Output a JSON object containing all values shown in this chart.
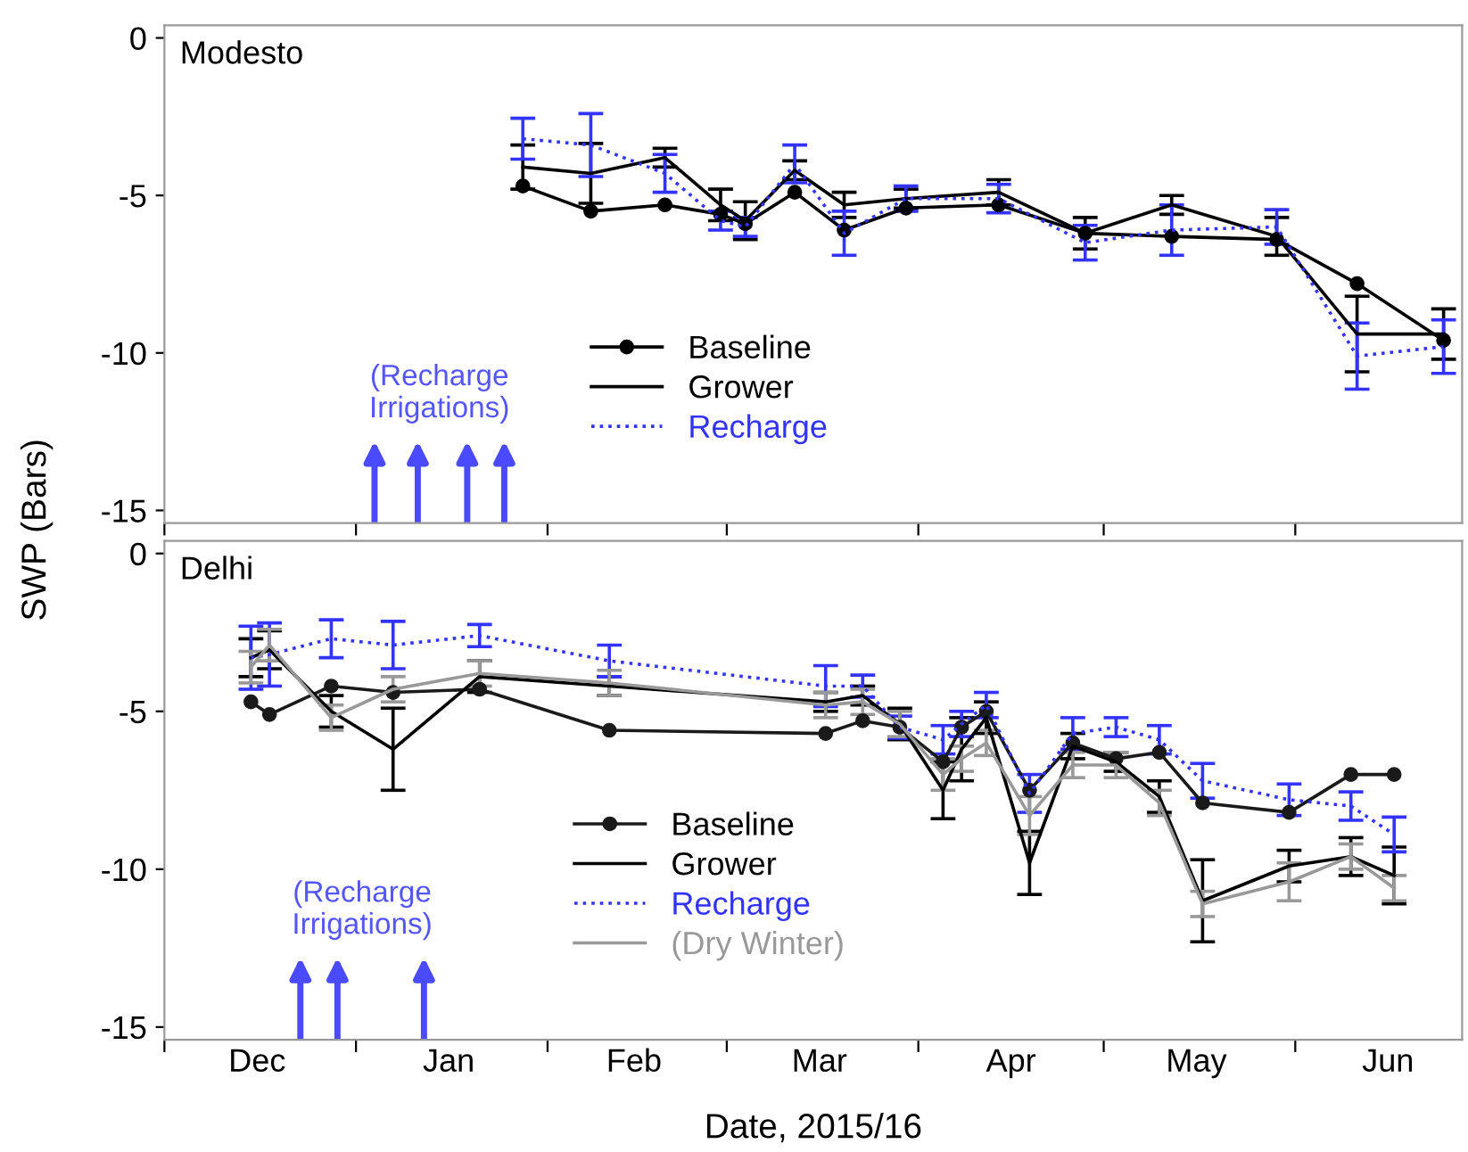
{
  "chart_data": [
    {
      "type": "line",
      "title": "Modesto",
      "ylabel": "SWP (Bars)",
      "tick_labels": "y",
      "legend": "bottom",
      "grid": false,
      "x": [
        "2016-01-28",
        "2016-02-08",
        "2016-02-20",
        "2016-02-29",
        "2016-03-04",
        "2016-03-12",
        "2016-03-20",
        "2016-03-30",
        "2016-04-14",
        "2016-04-28",
        "2016-05-12",
        "2016-05-29",
        "2016-06-11",
        "2016-06-25"
      ],
      "xlim": [
        "2015-12-01",
        "2016-06-28"
      ],
      "xticks": [
        {
          "value": "2015-12-01",
          "label": null
        },
        {
          "value": "2016-01-01",
          "label": null
        },
        {
          "value": "2016-02-01",
          "label": null
        },
        {
          "value": "2016-03-01",
          "label": null
        },
        {
          "value": "2016-04-01",
          "label": null
        },
        {
          "value": "2016-05-01",
          "label": null
        },
        {
          "value": "2016-06-01",
          "label": null
        }
      ],
      "ylim": [
        -15.4,
        0.4
      ],
      "yticks": [
        -15,
        -10,
        -5,
        0
      ],
      "series": [
        {
          "name": "Baseline",
          "color": "#000000",
          "marker": "circle",
          "line_style": "solid",
          "values": [
            -4.7,
            -5.5,
            -5.3,
            -5.6,
            -5.9,
            -4.9,
            -6.1,
            -5.4,
            -5.3,
            -6.2,
            -6.3,
            -6.4,
            -7.8,
            -9.6
          ]
        },
        {
          "name": "Grower",
          "color": "#000000",
          "marker": "none",
          "line_style": "solid",
          "values": [
            -4.1,
            -4.3,
            -3.8,
            -5.3,
            -5.8,
            -4.2,
            -5.3,
            -5.1,
            -4.9,
            -6.2,
            -5.3,
            -6.3,
            -9.4,
            -9.4
          ],
          "errors": [
            0.7,
            0.95,
            0.3,
            0.5,
            0.6,
            0.3,
            0.4,
            0.3,
            0.4,
            0.5,
            0.3,
            0.6,
            1.2,
            0.8
          ]
        },
        {
          "name": "Recharge",
          "color": "#3333ff",
          "marker": "none",
          "line_style": "dotted",
          "values": [
            -3.2,
            -3.4,
            -4.3,
            -5.8,
            -6.0,
            -4.0,
            -6.2,
            -5.1,
            -5.1,
            -6.5,
            -6.1,
            -6.0,
            -10.1,
            -9.8
          ],
          "errors": [
            0.65,
            1.0,
            0.6,
            0.3,
            0.3,
            0.6,
            0.7,
            0.4,
            0.45,
            0.55,
            0.8,
            0.55,
            1.05,
            0.85
          ]
        }
      ],
      "ref_lines": [
        {
          "axis": "x",
          "value": "2016-01-04",
          "color": "#4a4aff"
        },
        {
          "axis": "x",
          "value": "2016-01-11",
          "color": "#4a4aff"
        },
        {
          "axis": "x",
          "value": "2016-01-19",
          "color": "#4a4aff"
        },
        {
          "axis": "x",
          "value": "2016-01-25",
          "color": "#4a4aff"
        }
      ],
      "annotations": [
        "(Recharge\nIrrigations)"
      ]
    },
    {
      "type": "line",
      "title": "Delhi",
      "xlabel": "Date, 2015/16",
      "legend": "bottom",
      "grid": false,
      "x": [
        "2015-12-15",
        "2015-12-18",
        "2015-12-28",
        "2016-01-07",
        "2016-01-21",
        "2016-02-11",
        "2016-03-17",
        "2016-03-23",
        "2016-03-29",
        "2016-04-05",
        "2016-04-08",
        "2016-04-12",
        "2016-04-19",
        "2016-04-26",
        "2016-05-03",
        "2016-05-10",
        "2016-05-17",
        "2016-05-31",
        "2016-06-10",
        "2016-06-17"
      ],
      "xlim": [
        "2015-12-01",
        "2016-06-28"
      ],
      "xticks": [
        {
          "value": "2015-12-01",
          "label": null
        },
        {
          "value": "2015-12-16",
          "label": "Dec"
        },
        {
          "value": "2016-01-01",
          "label": null
        },
        {
          "value": "2016-01-16",
          "label": "Jan"
        },
        {
          "value": "2016-02-01",
          "label": null
        },
        {
          "value": "2016-02-15",
          "label": "Feb"
        },
        {
          "value": "2016-03-01",
          "label": null
        },
        {
          "value": "2016-03-16",
          "label": "Mar"
        },
        {
          "value": "2016-04-01",
          "label": null
        },
        {
          "value": "2016-04-16",
          "label": "Apr"
        },
        {
          "value": "2016-05-01",
          "label": null
        },
        {
          "value": "2016-05-16",
          "label": "May"
        },
        {
          "value": "2016-06-01",
          "label": null
        },
        {
          "value": "2016-06-16",
          "label": "Jun"
        }
      ],
      "ylim": [
        -15.4,
        0.4
      ],
      "yticks": [
        -15,
        -10,
        -5,
        0
      ],
      "series": [
        {
          "name": "Baseline",
          "color": "#1a1a1a",
          "marker": "circle",
          "line_style": "solid",
          "values": [
            -4.7,
            -5.1,
            -4.2,
            -4.4,
            -4.3,
            -5.6,
            -5.7,
            -5.3,
            -5.5,
            -6.6,
            -5.5,
            -5.0,
            -7.5,
            -6.0,
            -6.5,
            -6.3,
            -7.9,
            -8.2,
            -7.0,
            -7.0
          ]
        },
        {
          "name": "Grower",
          "color": "#000000",
          "marker": "none",
          "line_style": "solid",
          "values": [
            -3.3,
            -3.05,
            -5.0,
            -6.2,
            -3.9,
            -4.2,
            -4.7,
            -4.5,
            -5.4,
            -7.5,
            -6.2,
            -5.2,
            -9.8,
            -6.1,
            -6.6,
            -7.7,
            -11.0,
            -9.9,
            -9.6,
            -10.2
          ],
          "errors": [
            0.6,
            0.6,
            0.5,
            1.3,
            0.5,
            0.3,
            0.3,
            0.3,
            0.5,
            0.9,
            1.0,
            0.5,
            1.0,
            0.4,
            0.3,
            0.5,
            1.3,
            0.5,
            0.6,
            0.9
          ]
        },
        {
          "name": "Recharge",
          "color": "#3333ff",
          "marker": "none",
          "line_style": "dotted",
          "values": [
            -3.3,
            -3.2,
            -2.7,
            -2.9,
            -2.6,
            -3.4,
            -4.2,
            -4.2,
            -5.5,
            -5.9,
            -5.4,
            -4.8,
            -7.6,
            -5.7,
            -5.5,
            -5.9,
            -7.2,
            -7.8,
            -8.0,
            -8.9
          ],
          "errors": [
            1.0,
            1.0,
            0.6,
            0.75,
            0.35,
            0.5,
            0.65,
            0.35,
            0.35,
            0.45,
            0.4,
            0.4,
            0.6,
            0.5,
            0.3,
            0.45,
            0.55,
            0.5,
            0.45,
            0.55
          ]
        },
        {
          "name": "(Dry Winter)",
          "color": "#999999",
          "marker": "none",
          "line_style": "solid",
          "values": [
            -3.6,
            -2.9,
            -5.2,
            -4.3,
            -3.8,
            -4.1,
            -4.8,
            -4.7,
            -5.4,
            -7.0,
            -6.5,
            -6.0,
            -8.3,
            -6.7,
            -6.7,
            -7.9,
            -11.1,
            -10.4,
            -9.6,
            -10.6
          ],
          "errors": [
            0.5,
            0.5,
            0.4,
            0.4,
            0.4,
            0.4,
            0.4,
            0.4,
            0.4,
            0.5,
            0.4,
            0.4,
            0.6,
            0.4,
            0.4,
            0.4,
            0.4,
            0.6,
            0.4,
            0.4
          ]
        }
      ],
      "ref_lines": [
        {
          "axis": "x",
          "value": "2015-12-23",
          "color": "#4a4aff"
        },
        {
          "axis": "x",
          "value": "2015-12-29",
          "color": "#4a4aff"
        },
        {
          "axis": "x",
          "value": "2016-01-12",
          "color": "#4a4aff"
        }
      ],
      "annotations": [
        "(Recharge\nIrrigations)"
      ]
    }
  ]
}
